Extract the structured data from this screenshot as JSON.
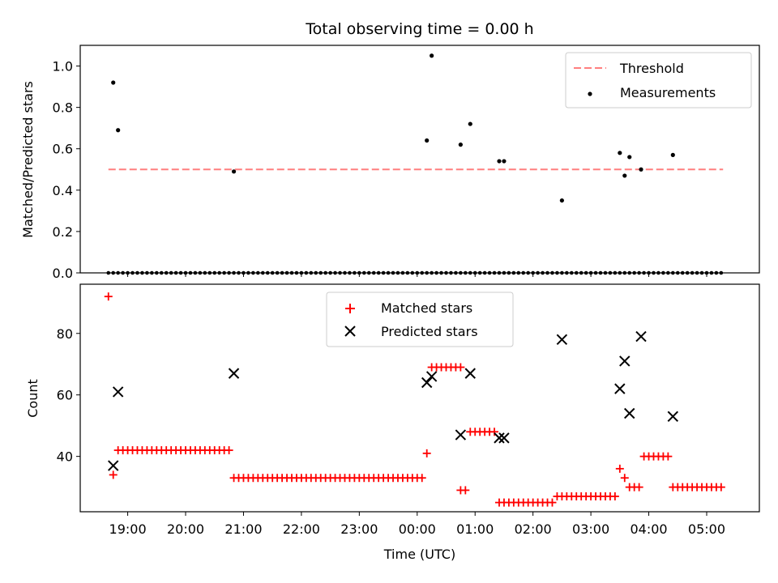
{
  "chart_data": [
    {
      "type": "scatter",
      "title": "Total observing time = 0.00 h",
      "xlabel": "",
      "ylabel": "Matched/Predicted stars",
      "xlim": [
        18.18,
        5.91
      ],
      "ylim": [
        0.0,
        1.1
      ],
      "yticks": [
        0.0,
        0.2,
        0.4,
        0.6,
        0.8,
        1.0
      ],
      "ytick_labels": [
        "0.0",
        "0.2",
        "0.4",
        "0.6",
        "0.8",
        "1.0"
      ],
      "legend_position": "upper right",
      "threshold": {
        "name": "Threshold",
        "y": 0.5,
        "x_start": "18:40",
        "x_end": "05:17",
        "color": "#ff7f7f"
      },
      "series": [
        {
          "name": "Measurements",
          "color": "#000000",
          "x": [
            "18:45",
            "18:50",
            "20:50",
            "00:10",
            "00:15",
            "00:45",
            "00:55",
            "01:25",
            "01:30",
            "02:30",
            "03:30",
            "03:35",
            "03:40",
            "03:52",
            "04:25"
          ],
          "y": [
            0.92,
            0.69,
            0.49,
            0.64,
            1.05,
            0.62,
            0.72,
            0.54,
            0.54,
            0.35,
            0.58,
            0.47,
            0.56,
            0.5,
            0.57
          ]
        },
        {
          "name": "zeros",
          "color": "#000000",
          "x_range": [
            "18:40",
            "05:17"
          ],
          "y": 0.0
        }
      ]
    },
    {
      "type": "scatter",
      "title": "",
      "xlabel": "Time (UTC)",
      "ylabel": "Count",
      "xlim": [
        18.18,
        5.91
      ],
      "ylim": [
        22.0,
        96.0
      ],
      "yticks": [
        40,
        60,
        80
      ],
      "ytick_labels": [
        "40",
        "60",
        "80"
      ],
      "xticks": [
        "19:00",
        "20:00",
        "21:00",
        "22:00",
        "23:00",
        "00:00",
        "01:00",
        "02:00",
        "03:00",
        "04:00",
        "05:00"
      ],
      "legend_position": "upper center",
      "series": [
        {
          "name": "Matched stars",
          "marker": "+",
          "color": "#ff0000",
          "points": [
            {
              "x": "18:40",
              "y": 92
            },
            {
              "x": "18:45",
              "y": 34
            },
            {
              "x_range": [
                "18:50",
                "20:45"
              ],
              "y": 42
            },
            {
              "x_range": [
                "20:50",
                "00:05"
              ],
              "y": 33
            },
            {
              "x": "00:10",
              "y": 41
            },
            {
              "x_range": [
                "00:15",
                "00:45"
              ],
              "y": 69
            },
            {
              "x_range": [
                "00:45",
                "00:50"
              ],
              "y": 29
            },
            {
              "x_range": [
                "00:55",
                "01:20"
              ],
              "y": 48
            },
            {
              "x_range": [
                "01:25",
                "02:20"
              ],
              "y": 25
            },
            {
              "x_range": [
                "02:25",
                "03:25"
              ],
              "y": 27
            },
            {
              "x": "03:30",
              "y": 36
            },
            {
              "x": "03:35",
              "y": 33
            },
            {
              "x_range": [
                "03:40",
                "03:50"
              ],
              "y": 30
            },
            {
              "x_range": [
                "03:55",
                "04:20"
              ],
              "y": 40
            },
            {
              "x_range": [
                "04:25",
                "05:17"
              ],
              "y": 30
            }
          ]
        },
        {
          "name": "Predicted stars",
          "marker": "x",
          "color": "#000000",
          "points": [
            {
              "x": "18:45",
              "y": 37
            },
            {
              "x": "18:50",
              "y": 61
            },
            {
              "x": "20:50",
              "y": 67
            },
            {
              "x": "00:10",
              "y": 64
            },
            {
              "x": "00:15",
              "y": 66
            },
            {
              "x": "00:45",
              "y": 47
            },
            {
              "x": "00:55",
              "y": 67
            },
            {
              "x": "01:25",
              "y": 46
            },
            {
              "x": "01:30",
              "y": 46
            },
            {
              "x": "02:30",
              "y": 78
            },
            {
              "x": "03:30",
              "y": 62
            },
            {
              "x": "03:35",
              "y": 71
            },
            {
              "x": "03:40",
              "y": 54
            },
            {
              "x": "03:52",
              "y": 79
            },
            {
              "x": "04:25",
              "y": 53
            }
          ]
        }
      ]
    }
  ]
}
